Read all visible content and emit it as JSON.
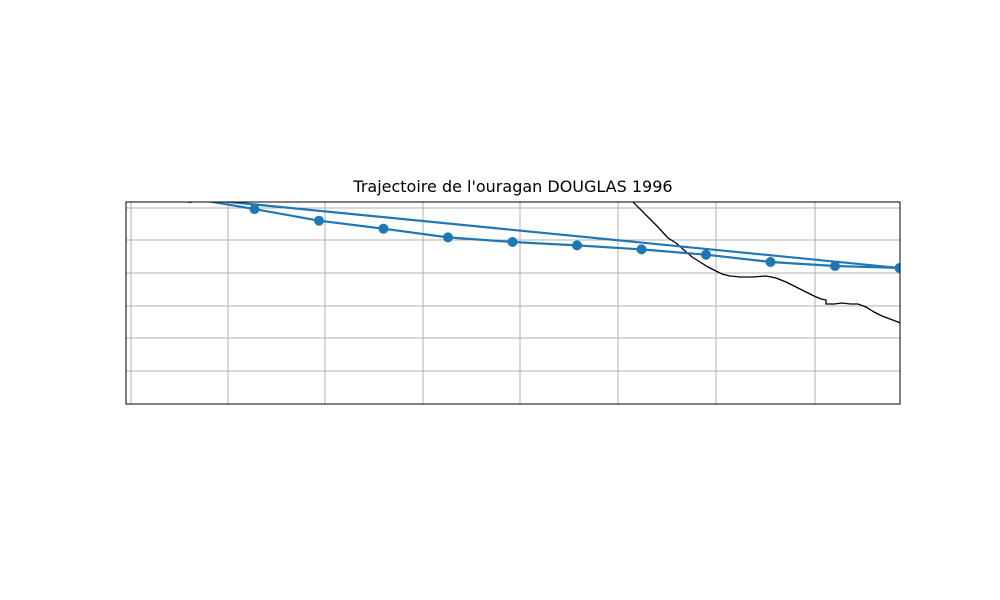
{
  "title": "Trajectoire de l'ouragan DOUGLAS 1996",
  "colors": {
    "track": "#1f77b4",
    "grid": "#b0b0b0",
    "coastline": "#000000",
    "frame": "#000000",
    "background": "#ffffff"
  },
  "map": {
    "grid": true,
    "coastline": true,
    "axis_tick_labels_shown": false
  },
  "chart_data": {
    "type": "line",
    "marker": "circle",
    "grid": true,
    "series": [
      {
        "x": [
          0.0,
          0.6,
          1.2,
          1.8,
          2.4,
          3.0,
          3.6,
          4.2,
          4.8,
          5.4,
          6.0,
          6.6,
          0.0
        ],
        "y": [
          2.1,
          1.77,
          1.42,
          1.18,
          0.92,
          0.78,
          0.68,
          0.56,
          0.4,
          0.18,
          0.06,
          0.0,
          2.1
        ]
      }
    ]
  }
}
